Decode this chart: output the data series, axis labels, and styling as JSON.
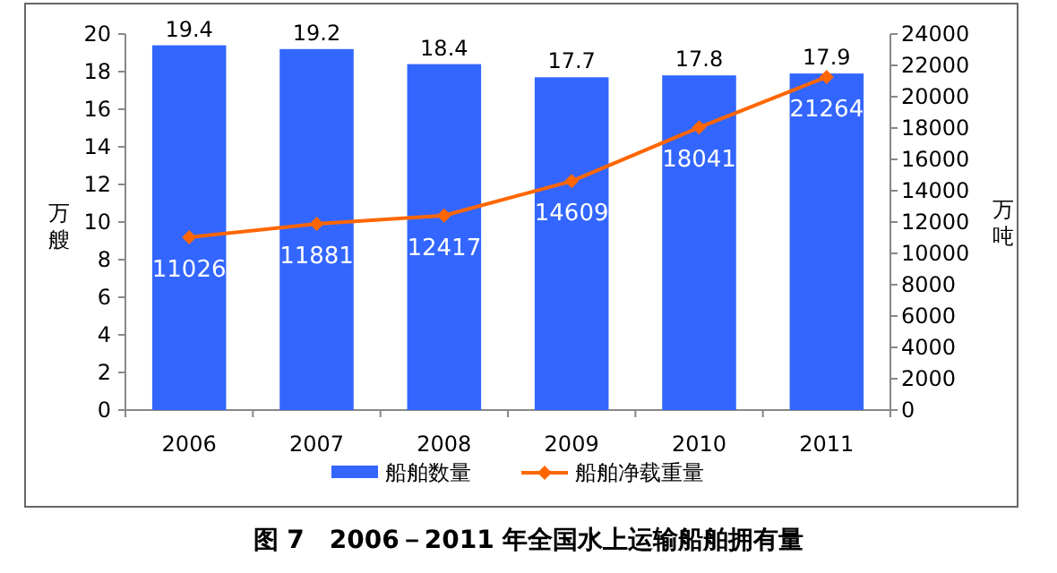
{
  "chart_data": {
    "type": "bar",
    "title": "图 7　2006－2011 年全国水上运输船舶拥有量",
    "ylabel": "万艘",
    "y2label": "万吨",
    "categories": [
      "2006",
      "2007",
      "2008",
      "2009",
      "2010",
      "2011"
    ],
    "series": [
      {
        "name": "船舶数量",
        "color": "#3366ff",
        "values": [
          19.4,
          19.2,
          18.4,
          17.7,
          17.8,
          17.9
        ]
      },
      {
        "name": "船舶净载重量",
        "type": "line",
        "axis": "y2",
        "color": "#ff6600",
        "marker": "diamond",
        "values": [
          11026,
          11881,
          12417,
          14609,
          18041,
          21264
        ]
      }
    ],
    "ylim": [
      0,
      20
    ],
    "yticks": [
      0,
      2,
      4,
      6,
      8,
      10,
      12,
      14,
      16,
      18,
      20
    ],
    "y2lim": [
      0,
      24000
    ],
    "y2ticks": [
      0,
      2000,
      4000,
      6000,
      8000,
      10000,
      12000,
      14000,
      16000,
      18000,
      20000,
      22000,
      24000
    ],
    "data_labels": true,
    "legend": "bottom",
    "grid": false
  }
}
